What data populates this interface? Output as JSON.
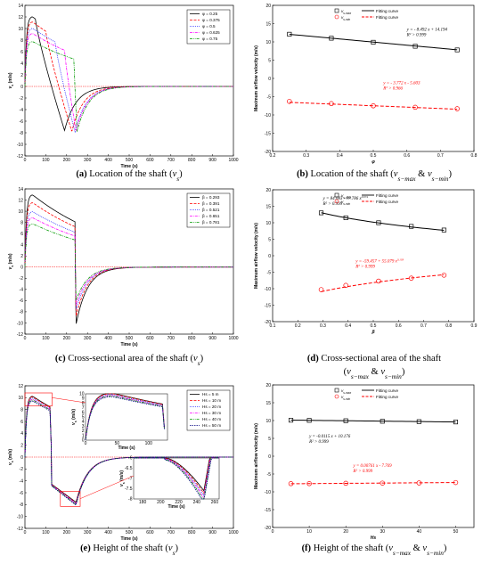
{
  "captions": [
    {
      "letter": "(a)",
      "text": "Location of the shaft (",
      "sym": "v",
      "sub": "s",
      "close": ")"
    },
    {
      "letter": "(b)",
      "text": "Location of the shaft (",
      "sym": "v",
      "sub": "s−max",
      "mid": " & ",
      "sym2": "v",
      "sub2": "s−min",
      "close": ")"
    },
    {
      "letter": "(c)",
      "text": "Cross-sectional area of the shaft (",
      "sym": "v",
      "sub": "s",
      "close": ")"
    },
    {
      "letter": "(d)",
      "text": "Cross-sectional area of the shaft",
      "line2": {
        "sym": "v",
        "sub": "s−max",
        "mid": " & ",
        "sym2": "v",
        "sub2": "s−min"
      }
    },
    {
      "letter": "(e)",
      "text": "Height of the shaft (",
      "sym": "v",
      "sub": "s",
      "close": ")"
    },
    {
      "letter": "(f)",
      "text": "Height of the shaft (",
      "sym": "v",
      "sub": "s−max",
      "mid": " & ",
      "sym2": "v",
      "sub2": "s−min",
      "close": ")"
    }
  ],
  "chart_data": [
    {
      "id": "a",
      "type": "line",
      "xlabel": "Time (s)",
      "ylabel": "v_s (m/s)",
      "xlim": [
        0,
        1000
      ],
      "ylim": [
        -12,
        14
      ],
      "xticks": [
        0,
        100,
        200,
        300,
        400,
        500,
        600,
        700,
        800,
        900,
        1000
      ],
      "yticks": [
        -12,
        -10,
        -8,
        -6,
        -4,
        -2,
        0,
        2,
        4,
        6,
        8,
        10,
        12,
        14
      ],
      "legend_position": "top-right",
      "series": [
        {
          "name": "φ = 0.25",
          "color": "#000000",
          "dash": "",
          "marker": "",
          "peak": 12.1,
          "t_fall": 50,
          "t_min": 190,
          "min": -7.6
        },
        {
          "name": "φ = 0.375",
          "color": "#ff0000",
          "dash": "3,1.5",
          "marker": "",
          "peak": 11.2,
          "t_fall": 100,
          "t_min": 225,
          "min": -7.8
        },
        {
          "name": "φ = 0.5",
          "color": "#0000ff",
          "dash": "0.8,1.2",
          "marker": "",
          "peak": 10.1,
          "t_fall": 145,
          "t_min": 240,
          "min": -7.8
        },
        {
          "name": "φ = 0.625",
          "color": "#ff00ff",
          "dash": "3,1,0.8,1",
          "marker": "",
          "peak": 9.2,
          "t_fall": 190,
          "t_min": 245,
          "min": -7.7
        },
        {
          "name": "φ = 0.75",
          "color": "#009900",
          "dash": "3,1,0.8,1,0.8,1",
          "marker": "",
          "peak": 7.8,
          "t_fall": 235,
          "t_min": 250,
          "min": -7.8
        }
      ]
    },
    {
      "id": "b",
      "type": "scatter",
      "xlabel": "φ",
      "ylabel": "Maximum airflow velocity (m/s)",
      "xlim": [
        0.2,
        0.8
      ],
      "ylim": [
        -20,
        20
      ],
      "xticks": [
        0.2,
        0.3,
        0.4,
        0.5,
        0.6,
        0.7,
        0.8
      ],
      "yticks": [
        -20,
        -15,
        -10,
        -5,
        0,
        5,
        10,
        15,
        20
      ],
      "legend": [
        {
          "sym": "v",
          "sub": "s-max",
          "fit": "Fitting curve",
          "color": "#000000",
          "marker": "square"
        },
        {
          "sym": "v",
          "sub": "s-min",
          "fit": "Fitting curve",
          "color": "#ff0000",
          "marker": "circle"
        }
      ],
      "series": [
        {
          "name": "v_s-max",
          "x": [
            0.25,
            0.375,
            0.5,
            0.625,
            0.75
          ],
          "y": [
            12.1,
            11.0,
            9.9,
            8.8,
            7.8
          ],
          "fit_a": -8.492,
          "fit_b": 14.194
        },
        {
          "name": "v_s-min",
          "x": [
            0.25,
            0.375,
            0.5,
            0.625,
            0.75
          ],
          "y": [
            -6.3,
            -6.9,
            -7.5,
            -7.9,
            -8.3
          ],
          "fit_a": -3.772,
          "fit_b": -5.603
        }
      ],
      "annotations": [
        {
          "line1": "y = - 8.492 x + 14.194",
          "line2": "R² > 0.999",
          "color": "#000000",
          "ax": 0.6,
          "ay": 13.0
        },
        {
          "line1": "y = - 3.772 x - 5.603",
          "line2": "R² > 0.966",
          "color": "#ff0000",
          "ax": 0.53,
          "ay": -1.6
        }
      ]
    },
    {
      "id": "c",
      "type": "line",
      "xlabel": "Time (s)",
      "ylabel": "v_s (m/s)",
      "xlim": [
        0,
        1000
      ],
      "ylim": [
        -12,
        14
      ],
      "xticks": [
        0,
        100,
        200,
        300,
        400,
        500,
        600,
        700,
        800,
        900,
        1000
      ],
      "yticks": [
        -12,
        -10,
        -8,
        -6,
        -4,
        -2,
        0,
        2,
        4,
        6,
        8,
        10,
        12,
        14
      ],
      "legend_position": "top-right",
      "series": [
        {
          "name": "β = 0.293",
          "color": "#000000",
          "dash": "",
          "marker": "",
          "peak": 13.0,
          "t_fall": 240,
          "t_min": 245,
          "min": -10.3
        },
        {
          "name": "β = 0.391",
          "color": "#ff0000",
          "dash": "3,1.5",
          "marker": "",
          "peak": 11.6,
          "t_fall": 240,
          "t_min": 245,
          "min": -8.9
        },
        {
          "name": "β = 0.521",
          "color": "#0000ff",
          "dash": "0.8,1.2",
          "marker": "",
          "peak": 10.0,
          "t_fall": 240,
          "t_min": 245,
          "min": -7.7
        },
        {
          "name": "β = 0.651",
          "color": "#ff00ff",
          "dash": "3,1,0.8,1",
          "marker": "",
          "peak": 8.9,
          "t_fall": 240,
          "t_min": 245,
          "min": -6.8
        },
        {
          "name": "β = 0.781",
          "color": "#009900",
          "dash": "3,1,0.8,1,0.8,1",
          "marker": "",
          "peak": 7.8,
          "t_fall": 240,
          "t_min": 245,
          "min": -6.0
        }
      ]
    },
    {
      "id": "d",
      "type": "scatter",
      "xlabel": "β",
      "ylabel": "Maximum airflow velocity (m/s)",
      "xlim": [
        0.1,
        0.9
      ],
      "ylim": [
        -20,
        20
      ],
      "xticks": [
        0.1,
        0.2,
        0.3,
        0.4,
        0.5,
        0.6,
        0.7,
        0.8,
        0.9
      ],
      "yticks": [
        -20,
        -15,
        -10,
        -5,
        0,
        5,
        10,
        15,
        20
      ],
      "legend": [
        {
          "sym": "v",
          "sub": "s-max",
          "fit": "Fitting curve",
          "color": "#000000",
          "marker": "square"
        },
        {
          "sym": "v",
          "sub": "s-min",
          "fit": "Fitting curve",
          "color": "#ff0000",
          "marker": "circle"
        }
      ],
      "series": [
        {
          "name": "v_s-max",
          "x": [
            0.293,
            0.391,
            0.521,
            0.651,
            0.781
          ],
          "y": [
            13.0,
            11.5,
            10.0,
            8.9,
            7.8
          ],
          "fit": "power",
          "fit_a": 84.083,
          "fit_b": -77.786,
          "fit_c": 0.074
        },
        {
          "name": "v_s-min",
          "x": [
            0.293,
            0.391,
            0.521,
            0.651,
            0.781
          ],
          "y": [
            -10.3,
            -9.0,
            -7.7,
            -6.8,
            -5.9
          ],
          "fit": "power",
          "fit_a": -59.457,
          "fit_b": 55.079,
          "fit_c": 0.103
        }
      ],
      "annotations": [
        {
          "line1": "y = 84.083 - 77.786 x",
          "sup": "0.074",
          "line2": "R² > 0.999",
          "color": "#000000",
          "ax": 0.3,
          "ay": 17.0
        },
        {
          "line1": "y = -59.457 + 55.079 x",
          "sup": "0.103",
          "line2": "R² > 0.999",
          "color": "#ff0000",
          "ax": 0.43,
          "ay": -2.0
        }
      ]
    },
    {
      "id": "e",
      "type": "line",
      "xlabel": "Time (s)",
      "ylabel": "v_s (m/s)",
      "xlim": [
        0,
        1000
      ],
      "ylim": [
        -12,
        12
      ],
      "xticks": [
        0,
        100,
        200,
        300,
        400,
        500,
        600,
        700,
        800,
        900,
        1000
      ],
      "yticks": [
        -12,
        -10,
        -8,
        -6,
        -4,
        -2,
        0,
        2,
        4,
        6,
        8,
        10,
        12
      ],
      "legend_position": "top-right",
      "series": [
        {
          "name": "Hs = 5 m",
          "color": "#000000",
          "dash": "",
          "peak": 10.3,
          "min": -7.6
        },
        {
          "name": "Hs = 10 m",
          "color": "#ff0000",
          "dash": "3,1.5",
          "peak": 10.2,
          "min": -7.7
        },
        {
          "name": "Hs = 20 m",
          "color": "#0000ff",
          "dash": "0.8,1.2",
          "peak": 10.0,
          "min": -7.8
        },
        {
          "name": "Hs = 30 m",
          "color": "#ff00ff",
          "dash": "3,1,0.8,1",
          "peak": 9.8,
          "min": -7.9
        },
        {
          "name": "Hs = 40 m",
          "color": "#009900",
          "dash": "3,1,0.8,1,0.8,1",
          "peak": 9.7,
          "min": -8.0
        },
        {
          "name": "Hs = 50 m",
          "color": "#000080",
          "dash": "1.5,1",
          "peak": 9.5,
          "min": -8.1
        }
      ],
      "inset1": {
        "xlim": [
          0,
          130
        ],
        "ylim": [
          0,
          10
        ],
        "xticks": [
          0,
          50,
          100
        ],
        "yticks": [
          0,
          1,
          2,
          3,
          4,
          5,
          6,
          7,
          8,
          9,
          10
        ],
        "xlabel": "Time (s)",
        "ylabel": "v_s (m/s)"
      },
      "inset2": {
        "xlim": [
          170,
          265
        ],
        "ylim": [
          -8,
          -6
        ],
        "xticks": [
          180,
          200,
          220,
          240,
          260
        ],
        "yticks": [
          -8,
          -7.5,
          -7,
          -6.5,
          -6
        ],
        "xlabel": "Time (s)",
        "ylabel": "v_s (m/s)"
      }
    },
    {
      "id": "f",
      "type": "scatter",
      "xlabel": "Hs",
      "ylabel": "Maximum airflow velocity (m/s)",
      "xlim": [
        0,
        55
      ],
      "ylim": [
        -20,
        20
      ],
      "xticks": [
        0,
        10,
        20,
        30,
        40,
        50
      ],
      "yticks": [
        -20,
        -15,
        -10,
        -5,
        0,
        5,
        10,
        15,
        20
      ],
      "legend": [
        {
          "sym": "v",
          "sub": "s-max",
          "fit": "Fitting curve",
          "color": "#000000",
          "marker": "square"
        },
        {
          "sym": "v",
          "sub": "s-min",
          "fit": "Fitting curve",
          "color": "#ff0000",
          "marker": "circle"
        }
      ],
      "series": [
        {
          "name": "v_s-max",
          "x": [
            5,
            10,
            20,
            30,
            40,
            50
          ],
          "y": [
            10.1,
            10.05,
            9.95,
            9.8,
            9.7,
            9.6
          ],
          "fit_a": -0.0115,
          "fit_b": 10.176
        },
        {
          "name": "v_s-min",
          "x": [
            5,
            10,
            20,
            30,
            40,
            50
          ],
          "y": [
            -7.7,
            -7.7,
            -7.6,
            -7.55,
            -7.5,
            -7.4
          ],
          "fit_a": 0.00761,
          "fit_b": -7.769
        }
      ],
      "annotations": [
        {
          "line1": "y = -0.0115 x + 10.176",
          "line2": "R² > 0.999",
          "color": "#000000",
          "ax": 10,
          "ay": 5.2
        },
        {
          "line1": "y = 0.00761 x - 7.769",
          "line2": "R² > 0.999",
          "color": "#ff0000",
          "ax": 22,
          "ay": -3.0
        }
      ]
    }
  ]
}
